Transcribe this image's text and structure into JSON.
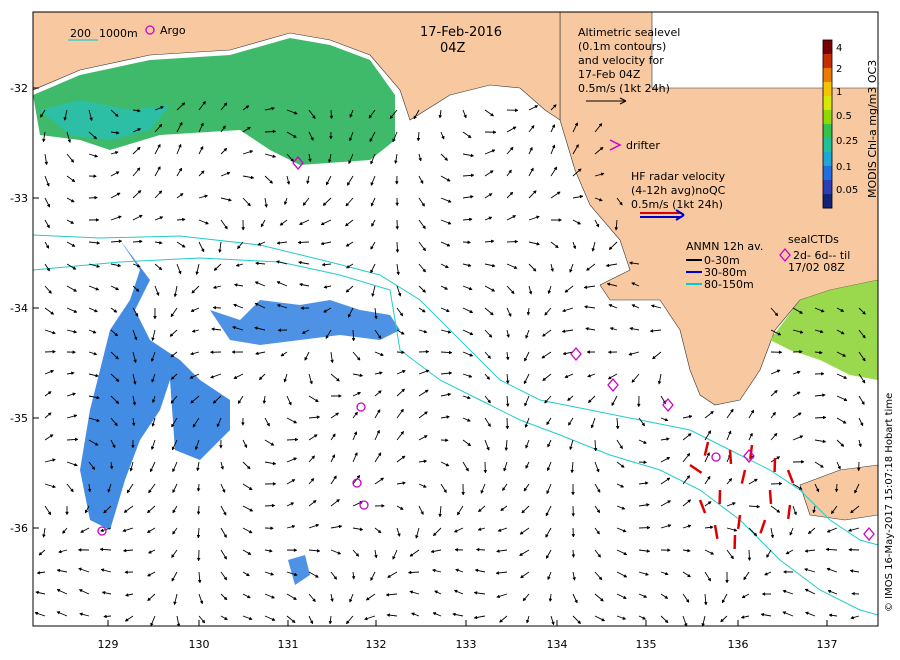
{
  "header": {
    "date": "17-Feb-2016",
    "time": "04Z"
  },
  "contour_legend": {
    "label_200": "200",
    "label_1000": "1000m"
  },
  "argo_legend": {
    "label": "Argo"
  },
  "altimetry_note": {
    "lines": [
      "Altimetric sealevel",
      "(0.1m contours)",
      "and velocity for",
      "17-Feb 04Z",
      "0.5m/s (1kt 24h)"
    ]
  },
  "drifter_legend": {
    "label": "drifter"
  },
  "hf_radar_note": {
    "lines": [
      "HF radar velocity",
      "(4-12h avg)noQC",
      "0.5m/s (1kt 24h)"
    ]
  },
  "anmn_legend": {
    "title": "ANMN 12h av.",
    "items": [
      "0-30m",
      "30-80m",
      "80-150m"
    ]
  },
  "sealctd_legend": {
    "lines": [
      "sealCTDs",
      "2d- 6d-- til",
      "17/02 08Z"
    ]
  },
  "colorbar": {
    "label": "MODIS Chl-a mg/m3 OC3",
    "ticks": [
      "4",
      "2",
      "1",
      "0.5",
      "0.25",
      "0.1",
      "0.05"
    ],
    "colors": [
      "#7a0000",
      "#c62e00",
      "#ef7a00",
      "#f5c400",
      "#d8e800",
      "#8fd800",
      "#33c24a",
      "#1fbf9a",
      "#1ea6d6",
      "#1f6fe0",
      "#2a3fb8",
      "#14227a"
    ]
  },
  "credit": "© IMOS 16-May-2017 15:07:18 Hobart time",
  "axes": {
    "lon_ticks": [
      "129",
      "130",
      "131",
      "132",
      "133",
      "134",
      "135",
      "136",
      "137"
    ],
    "lat_ticks": [
      "-32",
      "-33",
      "-34",
      "-35",
      "-36"
    ]
  },
  "colors": {
    "land": "#f8c9a0",
    "anmn_0_30": "#000000",
    "anmn_30_80": "#0000cc",
    "anmn_80_150": "#00cccc",
    "argo": "#cc00cc",
    "hf_radar": "#dd0000"
  }
}
